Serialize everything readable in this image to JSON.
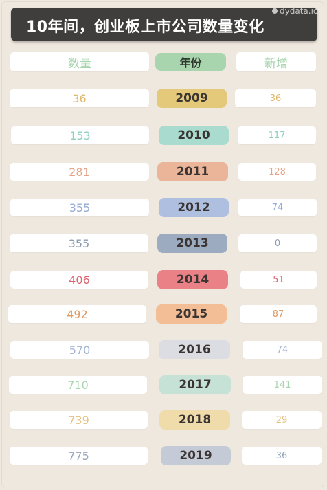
{
  "title": "10年间，创业板上市公司数量变化",
  "watermark": "dydata.io",
  "headers": {
    "count": "数量",
    "year": "年份",
    "new": "新增"
  },
  "chart_data": {
    "type": "table",
    "title": "10年间，创业板上市公司数量变化",
    "columns": [
      "数量",
      "年份",
      "新增"
    ],
    "rows": [
      {
        "count": "36",
        "year": "2009",
        "new": "36",
        "color": "#e5c97a",
        "text_color": "#e0b86a"
      },
      {
        "count": "153",
        "year": "2010",
        "new": "117",
        "color": "#a9dccf",
        "text_color": "#8ecfc0"
      },
      {
        "count": "281",
        "year": "2011",
        "new": "128",
        "color": "#ebb59a",
        "text_color": "#e3a587"
      },
      {
        "count": "355",
        "year": "2012",
        "new": "74",
        "color": "#aebfe0",
        "text_color": "#98add6"
      },
      {
        "count": "355",
        "year": "2013",
        "new": "0",
        "color": "#9cabbf",
        "text_color": "#8b9bb0"
      },
      {
        "count": "406",
        "year": "2014",
        "new": "51",
        "color": "#e98187",
        "text_color": "#dc6470"
      },
      {
        "count": "492",
        "year": "2015",
        "new": "87",
        "color": "#f3bd95",
        "text_color": "#e09a63"
      },
      {
        "count": "570",
        "year": "2016",
        "new": "74",
        "color": "#dcdde3",
        "text_color": "#a3b4d2"
      },
      {
        "count": "710",
        "year": "2017",
        "new": "141",
        "color": "#c6e2d6",
        "text_color": "#a9d5ae"
      },
      {
        "count": "739",
        "year": "2018",
        "new": "29",
        "color": "#f0dcab",
        "text_color": "#e3c37f"
      },
      {
        "count": "775",
        "year": "2019",
        "new": "36",
        "color": "#c5cbd6",
        "text_color": "#98a6bd"
      }
    ]
  }
}
